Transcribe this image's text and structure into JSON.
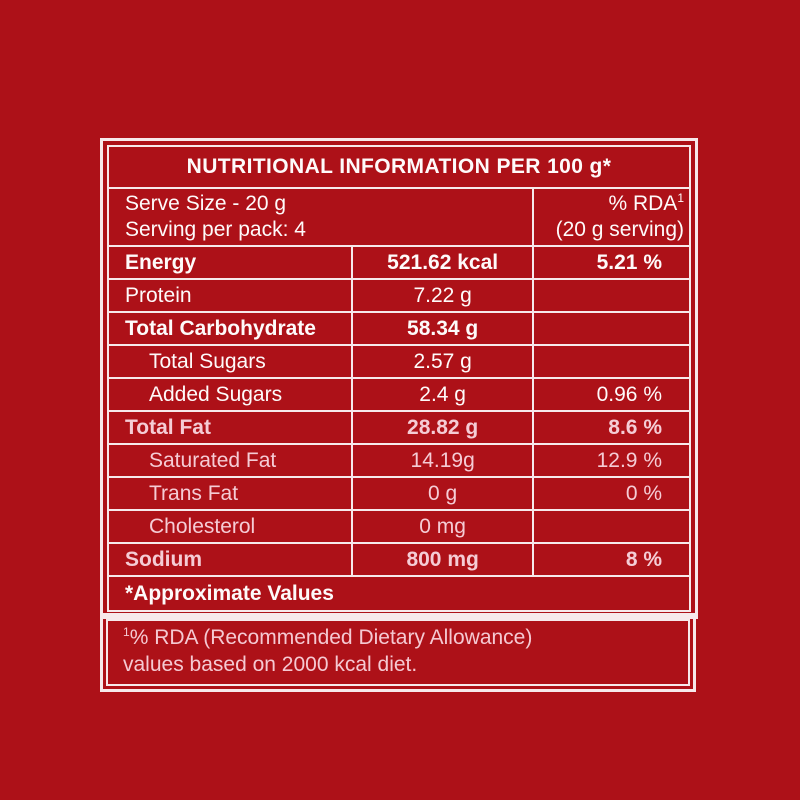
{
  "colors": {
    "background": "#ad1118",
    "border": "#f7e9eb",
    "text": "#fefafa",
    "tint_text": "#f5ccd5"
  },
  "table": {
    "title": "NUTRITIONAL INFORMATION PER 100 g*",
    "serve_info": {
      "line1": "Serve Size - 20 g",
      "line2": "Serving per pack: 4"
    },
    "rda_header": {
      "text": "% RDA",
      "sup": "1",
      "subtext": "(20 g serving)"
    },
    "rows": [
      {
        "label": "Energy",
        "value": "521.62 kcal",
        "rda": "5.21 %",
        "bold": true,
        "indent": false
      },
      {
        "label": "Protein",
        "value": "7.22 g",
        "rda": "",
        "bold": false,
        "indent": false
      },
      {
        "label": "Total Carbohydrate",
        "value": "58.34 g",
        "rda": "",
        "bold": true,
        "indent": false
      },
      {
        "label": "Total Sugars",
        "value": "2.57 g",
        "rda": "",
        "bold": false,
        "indent": true
      },
      {
        "label": "Added Sugars",
        "value": "2.4 g",
        "rda": "0.96 %",
        "bold": false,
        "indent": true
      },
      {
        "label": "Total Fat",
        "value": "28.82 g",
        "rda": "8.6 %",
        "bold": true,
        "indent": false
      },
      {
        "label": "Saturated Fat",
        "value": "14.19g",
        "rda": "12.9 %",
        "bold": false,
        "indent": true
      },
      {
        "label": "Trans Fat",
        "value": "0 g",
        "rda": "0 %",
        "bold": false,
        "indent": true
      },
      {
        "label": "Cholesterol",
        "value": "0 mg",
        "rda": "",
        "bold": false,
        "indent": true
      },
      {
        "label": "Sodium",
        "value": "800 mg",
        "rda": "8 %",
        "bold": true,
        "indent": false
      }
    ],
    "footer_note": "*Approximate Values"
  },
  "footnote": {
    "sup": "1",
    "line1": "% RDA (Recommended Dietary Allowance)",
    "line2": "values based on 2000 kcal diet."
  }
}
